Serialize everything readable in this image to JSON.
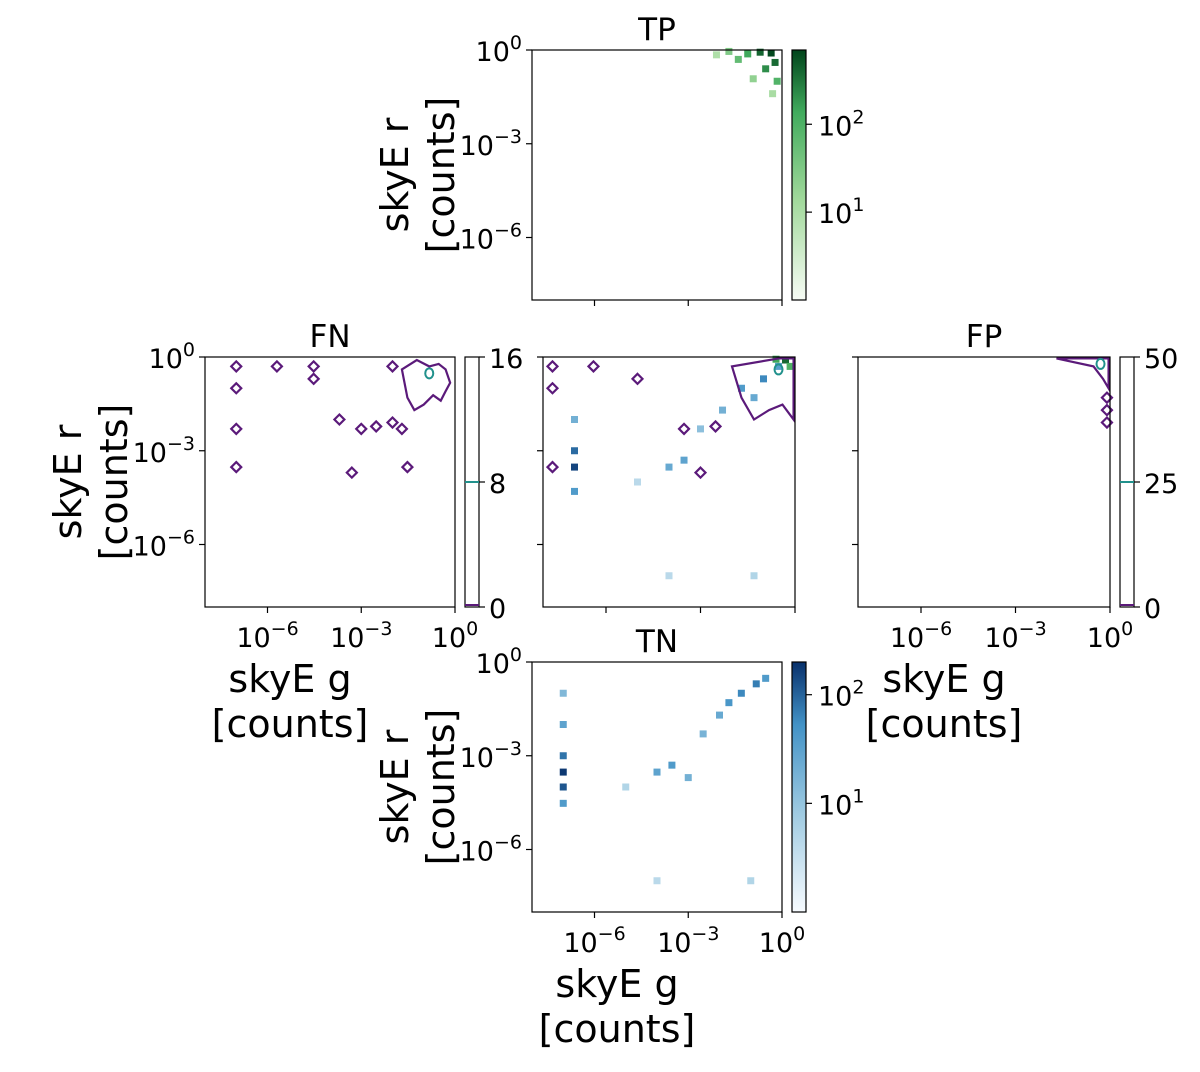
{
  "chart_data": [
    {
      "id": "tp",
      "type": "heatmap",
      "title": "TP",
      "colormap": "Greens",
      "xscale": "log",
      "yscale": "log",
      "xlim": [
        1e-08,
        1
      ],
      "ylim": [
        1e-08,
        1
      ],
      "xlabel": "",
      "ylabel": [
        "skyE r",
        "[counts]"
      ],
      "x_ticks": [],
      "y_ticks": [
        "10^0",
        "10^-3",
        "10^-6"
      ],
      "colorbar": {
        "scale": "log",
        "range": [
          1,
          700
        ],
        "ticks": [
          "10^2",
          "10^1"
        ]
      },
      "cells": [
        {
          "x": 0.45,
          "y": 0.8,
          "count": 650
        },
        {
          "x": 0.2,
          "y": 0.85,
          "count": 420
        },
        {
          "x": 0.6,
          "y": 0.4,
          "count": 380
        },
        {
          "x": 0.08,
          "y": 0.75,
          "count": 140
        },
        {
          "x": 0.3,
          "y": 0.25,
          "count": 220
        },
        {
          "x": 0.04,
          "y": 0.5,
          "count": 60
        },
        {
          "x": 0.02,
          "y": 0.9,
          "count": 30
        },
        {
          "x": 0.7,
          "y": 0.1,
          "count": 90
        },
        {
          "x": 0.12,
          "y": 0.12,
          "count": 20
        },
        {
          "x": 0.5,
          "y": 0.04,
          "count": 10
        },
        {
          "x": 0.008,
          "y": 0.7,
          "count": 8
        }
      ]
    },
    {
      "id": "fn",
      "type": "heatmap",
      "title": "FN",
      "colormap": "viridis contours",
      "xscale": "log",
      "yscale": "log",
      "xlim": [
        1e-08,
        1
      ],
      "ylim": [
        1e-08,
        1
      ],
      "xlabel": [
        "skyE g",
        "[counts]"
      ],
      "ylabel": [
        "skyE r",
        "[counts]"
      ],
      "x_ticks": [
        "10^-6",
        "10^-3",
        "10^0"
      ],
      "y_ticks": [
        "10^0",
        "10^-3",
        "10^-6"
      ],
      "colorbar": {
        "scale": "linear",
        "range": [
          0,
          16
        ],
        "ticks": [
          "16",
          "8",
          "0"
        ]
      },
      "contour_points": [
        {
          "x": 1e-07,
          "y": 0.5
        },
        {
          "x": 1e-07,
          "y": 0.1
        },
        {
          "x": 1e-07,
          "y": 0.005
        },
        {
          "x": 1e-07,
          "y": 0.0003
        },
        {
          "x": 2e-06,
          "y": 0.5
        },
        {
          "x": 3e-05,
          "y": 0.2
        },
        {
          "x": 3e-05,
          "y": 0.5
        },
        {
          "x": 0.0002,
          "y": 0.01
        },
        {
          "x": 0.0005,
          "y": 0.0002
        },
        {
          "x": 0.001,
          "y": 0.005
        },
        {
          "x": 0.003,
          "y": 0.006
        },
        {
          "x": 0.01,
          "y": 0.008
        },
        {
          "x": 0.02,
          "y": 0.005
        },
        {
          "x": 0.03,
          "y": 0.0003
        },
        {
          "x": 0.01,
          "y": 0.5
        }
      ],
      "contour_region": [
        {
          "x": 0.02,
          "y": 0.4
        },
        {
          "x": 0.03,
          "y": 0.05
        },
        {
          "x": 0.05,
          "y": 0.02
        },
        {
          "x": 0.1,
          "y": 0.03
        },
        {
          "x": 0.2,
          "y": 0.06
        },
        {
          "x": 0.35,
          "y": 0.04
        },
        {
          "x": 0.5,
          "y": 0.08
        },
        {
          "x": 0.7,
          "y": 0.15
        },
        {
          "x": 0.5,
          "y": 0.4
        },
        {
          "x": 0.3,
          "y": 0.6
        },
        {
          "x": 0.15,
          "y": 0.5
        },
        {
          "x": 0.06,
          "y": 0.8
        }
      ],
      "peak_contour": {
        "x": 0.15,
        "y": 0.3
      }
    },
    {
      "id": "all",
      "type": "heatmap",
      "title": "",
      "colormap": "Blues + Greens + contours",
      "xscale": "log",
      "yscale": "log",
      "xlim": [
        1e-08,
        1
      ],
      "ylim": [
        1e-08,
        1
      ],
      "xlabel": "",
      "ylabel": "",
      "x_ticks": [],
      "y_ticks": [],
      "cells": [
        {
          "x": 1e-07,
          "y": 0.0003,
          "count": 150
        },
        {
          "x": 1e-07,
          "y": 0.001,
          "count": 90
        },
        {
          "x": 1e-07,
          "y": 5e-05,
          "count": 40
        },
        {
          "x": 1e-07,
          "y": 0.01,
          "count": 20
        },
        {
          "x": 0.0003,
          "y": 0.0005,
          "count": 30
        },
        {
          "x": 0.0001,
          "y": 0.0003,
          "count": 25
        },
        {
          "x": 0.02,
          "y": 0.1,
          "count": 40
        },
        {
          "x": 0.1,
          "y": 0.2,
          "count": 60
        },
        {
          "x": 0.005,
          "y": 0.02,
          "count": 20
        },
        {
          "x": 0.001,
          "y": 0.005,
          "count": 12
        },
        {
          "x": 0.3,
          "y": 0.5,
          "count": 35
        },
        {
          "x": 0.05,
          "y": 0.05,
          "count": 25
        },
        {
          "x": 0.0001,
          "y": 1e-07,
          "count": 4
        },
        {
          "x": 0.05,
          "y": 1e-07,
          "count": 5
        },
        {
          "x": 1e-05,
          "y": 0.0001,
          "count": 4
        }
      ],
      "tp_cells": [
        {
          "x": 0.5,
          "y": 0.8,
          "count": 400
        },
        {
          "x": 0.25,
          "y": 0.85,
          "count": 150
        },
        {
          "x": 0.7,
          "y": 0.5,
          "count": 100
        }
      ],
      "contour_points": [
        {
          "x": 2e-08,
          "y": 0.5
        },
        {
          "x": 2e-08,
          "y": 0.1
        },
        {
          "x": 2e-08,
          "y": 0.0003
        },
        {
          "x": 4e-07,
          "y": 0.5
        },
        {
          "x": 1e-05,
          "y": 0.2
        },
        {
          "x": 0.0003,
          "y": 0.005
        },
        {
          "x": 0.001,
          "y": 0.0002
        },
        {
          "x": 0.003,
          "y": 0.006
        }
      ],
      "contour_region": [
        {
          "x": 0.01,
          "y": 0.5
        },
        {
          "x": 0.02,
          "y": 0.05
        },
        {
          "x": 0.05,
          "y": 0.01
        },
        {
          "x": 0.15,
          "y": 0.02
        },
        {
          "x": 0.4,
          "y": 0.03
        },
        {
          "x": 0.9,
          "y": 0.01
        },
        {
          "x": 0.9,
          "y": 0.9
        },
        {
          "x": 0.3,
          "y": 0.9
        }
      ],
      "peak_contour": {
        "x": 0.3,
        "y": 0.4
      }
    },
    {
      "id": "fp",
      "type": "heatmap",
      "title": "FP",
      "colormap": "viridis contours",
      "xscale": "log",
      "yscale": "log",
      "xlim": [
        1e-08,
        1
      ],
      "ylim": [
        1e-08,
        1
      ],
      "xlabel": [
        "skyE g",
        "[counts]"
      ],
      "ylabel": "",
      "x_ticks": [
        "10^-6",
        "10^-3",
        "10^0"
      ],
      "y_ticks": [],
      "colorbar": {
        "scale": "linear",
        "range": [
          0,
          50
        ],
        "ticks": [
          "50",
          "25",
          "0"
        ]
      },
      "contour_points": [
        {
          "x": 0.8,
          "y": 0.05
        },
        {
          "x": 0.8,
          "y": 0.02
        },
        {
          "x": 0.8,
          "y": 0.008
        }
      ],
      "contour_region": [
        {
          "x": 0.02,
          "y": 0.9
        },
        {
          "x": 0.3,
          "y": 0.5
        },
        {
          "x": 0.6,
          "y": 0.2
        },
        {
          "x": 0.9,
          "y": 0.1
        },
        {
          "x": 0.9,
          "y": 0.9
        }
      ],
      "peak_contour": {
        "x": 0.5,
        "y": 0.6
      }
    },
    {
      "id": "tn",
      "type": "heatmap",
      "title": "TN",
      "colormap": "Blues",
      "xscale": "log",
      "yscale": "log",
      "xlim": [
        1e-08,
        1
      ],
      "ylim": [
        1e-08,
        1
      ],
      "xlabel": [
        "skyE g",
        "[counts]"
      ],
      "ylabel": [
        "skyE r",
        "[counts]"
      ],
      "x_ticks": [
        "10^-6",
        "10^-3",
        "10^0"
      ],
      "y_ticks": [
        "10^0",
        "10^-3",
        "10^-6"
      ],
      "colorbar": {
        "scale": "log",
        "range": [
          1,
          200
        ],
        "ticks": [
          "10^2",
          "10^1"
        ]
      },
      "cells": [
        {
          "x": 1e-07,
          "y": 0.0003,
          "count": 180
        },
        {
          "x": 1e-07,
          "y": 0.0001,
          "count": 120
        },
        {
          "x": 1e-07,
          "y": 0.001,
          "count": 80
        },
        {
          "x": 1e-07,
          "y": 0.01,
          "count": 30
        },
        {
          "x": 1e-07,
          "y": 0.1,
          "count": 15
        },
        {
          "x": 1e-07,
          "y": 3e-05,
          "count": 40
        },
        {
          "x": 0.0003,
          "y": 0.0005,
          "count": 40
        },
        {
          "x": 0.0001,
          "y": 0.0003,
          "count": 30
        },
        {
          "x": 0.001,
          "y": 0.0002,
          "count": 20
        },
        {
          "x": 0.003,
          "y": 0.005,
          "count": 18
        },
        {
          "x": 0.02,
          "y": 0.05,
          "count": 45
        },
        {
          "x": 0.05,
          "y": 0.1,
          "count": 60
        },
        {
          "x": 0.15,
          "y": 0.2,
          "count": 70
        },
        {
          "x": 0.3,
          "y": 0.3,
          "count": 40
        },
        {
          "x": 0.01,
          "y": 0.02,
          "count": 25
        },
        {
          "x": 0.0001,
          "y": 1e-07,
          "count": 4
        },
        {
          "x": 0.1,
          "y": 1e-07,
          "count": 5
        },
        {
          "x": 1e-05,
          "y": 0.0001,
          "count": 5
        }
      ]
    }
  ]
}
